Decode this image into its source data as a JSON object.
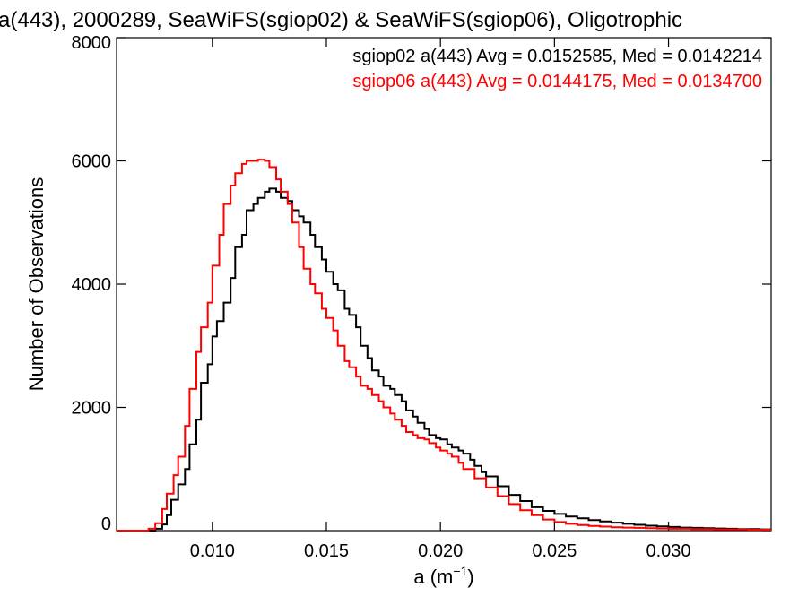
{
  "chart_data": {
    "type": "line",
    "title": "a(443), 2000289, SeaWiFS(sgiop02) & SeaWiFS(sgiop06), Oligotrophic",
    "xlabel": "a (m",
    "xlabel_sup": "−1",
    "xlabel_close": ")",
    "ylabel": "Number of Observations",
    "xlim": [
      0.0058,
      0.0345
    ],
    "ylim": [
      0,
      8000
    ],
    "xticks": [
      {
        "value": 0.01,
        "label": "0.010"
      },
      {
        "value": 0.015,
        "label": "0.015"
      },
      {
        "value": 0.02,
        "label": "0.020"
      },
      {
        "value": 0.025,
        "label": "0.025"
      },
      {
        "value": 0.03,
        "label": "0.030"
      }
    ],
    "yticks": [
      {
        "value": 0,
        "label": "0"
      },
      {
        "value": 2000,
        "label": "2000"
      },
      {
        "value": 4000,
        "label": "4000"
      },
      {
        "value": 6000,
        "label": "6000"
      },
      {
        "value": 8000,
        "label": "8000"
      }
    ],
    "grid": false,
    "legend_position": "top-right",
    "series": [
      {
        "name": "sgiop02 a(443) Avg = 0.0152585, Med = 0.0142214",
        "color": "#000000",
        "x": [
          0.0058,
          0.007,
          0.0075,
          0.0078,
          0.008,
          0.0082,
          0.0085,
          0.0088,
          0.009,
          0.0093,
          0.0095,
          0.0098,
          0.01,
          0.0102,
          0.0105,
          0.0108,
          0.011,
          0.0113,
          0.0115,
          0.0118,
          0.012,
          0.0123,
          0.0125,
          0.0128,
          0.013,
          0.0133,
          0.0135,
          0.0138,
          0.014,
          0.0143,
          0.0145,
          0.0148,
          0.015,
          0.0153,
          0.0155,
          0.0158,
          0.016,
          0.0163,
          0.0165,
          0.0168,
          0.017,
          0.0173,
          0.0175,
          0.0178,
          0.018,
          0.0183,
          0.0185,
          0.0188,
          0.019,
          0.0193,
          0.0195,
          0.0198,
          0.02,
          0.0203,
          0.0205,
          0.0208,
          0.021,
          0.0213,
          0.0215,
          0.0218,
          0.022,
          0.0225,
          0.023,
          0.0235,
          0.024,
          0.0245,
          0.025,
          0.0255,
          0.026,
          0.0265,
          0.027,
          0.0275,
          0.028,
          0.0285,
          0.029,
          0.0295,
          0.03,
          0.0305,
          0.031,
          0.0315,
          0.032,
          0.0325,
          0.033,
          0.0335,
          0.034,
          0.0345
        ],
        "y": [
          0,
          0,
          30,
          100,
          250,
          500,
          750,
          1000,
          1400,
          1800,
          2400,
          2700,
          3150,
          3400,
          3700,
          4100,
          4600,
          4800,
          5200,
          5300,
          5400,
          5500,
          5550,
          5500,
          5400,
          5350,
          5200,
          5100,
          5000,
          4800,
          4600,
          4400,
          4200,
          4000,
          3900,
          3600,
          3500,
          3300,
          3000,
          2800,
          2600,
          2500,
          2350,
          2300,
          2200,
          2100,
          1950,
          1850,
          1750,
          1650,
          1550,
          1500,
          1480,
          1400,
          1350,
          1300,
          1250,
          1150,
          1050,
          950,
          880,
          720,
          580,
          480,
          380,
          320,
          270,
          230,
          200,
          170,
          150,
          130,
          110,
          95,
          80,
          70,
          60,
          50,
          45,
          40,
          35,
          30,
          25,
          25,
          20,
          20
        ]
      },
      {
        "name": "sgiop06 a(443) Avg = 0.0144175, Med = 0.0134700",
        "color": "#ff0000",
        "x": [
          0.0058,
          0.0068,
          0.0072,
          0.0075,
          0.0078,
          0.008,
          0.0083,
          0.0085,
          0.0088,
          0.009,
          0.0093,
          0.0095,
          0.0098,
          0.01,
          0.0103,
          0.0105,
          0.0108,
          0.011,
          0.0113,
          0.0115,
          0.0118,
          0.012,
          0.0123,
          0.0125,
          0.0128,
          0.013,
          0.0133,
          0.0135,
          0.0138,
          0.014,
          0.0143,
          0.0145,
          0.0148,
          0.015,
          0.0153,
          0.0155,
          0.0158,
          0.016,
          0.0163,
          0.0165,
          0.0168,
          0.017,
          0.0173,
          0.0175,
          0.0178,
          0.018,
          0.0183,
          0.0185,
          0.0188,
          0.019,
          0.0193,
          0.0195,
          0.0198,
          0.02,
          0.0203,
          0.0205,
          0.0208,
          0.021,
          0.0215,
          0.022,
          0.0225,
          0.023,
          0.0235,
          0.024,
          0.0245,
          0.025,
          0.0255,
          0.026,
          0.0265,
          0.027,
          0.0275,
          0.028,
          0.0285,
          0.029,
          0.0295,
          0.03,
          0.0305,
          0.031,
          0.0315,
          0.032,
          0.0325,
          0.033,
          0.0335,
          0.034,
          0.0345
        ],
        "y": [
          0,
          0,
          30,
          120,
          350,
          600,
          900,
          1200,
          1700,
          2300,
          2900,
          3300,
          3700,
          4300,
          4800,
          5300,
          5600,
          5800,
          5950,
          6000,
          6000,
          6020,
          6000,
          5900,
          5700,
          5500,
          5300,
          5000,
          4600,
          4250,
          4000,
          3850,
          3600,
          3450,
          3250,
          3000,
          2750,
          2650,
          2500,
          2350,
          2300,
          2200,
          2100,
          2000,
          1900,
          1800,
          1700,
          1600,
          1550,
          1500,
          1480,
          1420,
          1350,
          1300,
          1250,
          1200,
          1100,
          1000,
          850,
          700,
          560,
          430,
          330,
          250,
          180,
          140,
          110,
          90,
          75,
          65,
          55,
          50,
          45,
          40,
          35,
          30,
          30,
          25,
          25,
          20,
          20,
          20,
          15,
          15,
          15
        ]
      }
    ]
  }
}
